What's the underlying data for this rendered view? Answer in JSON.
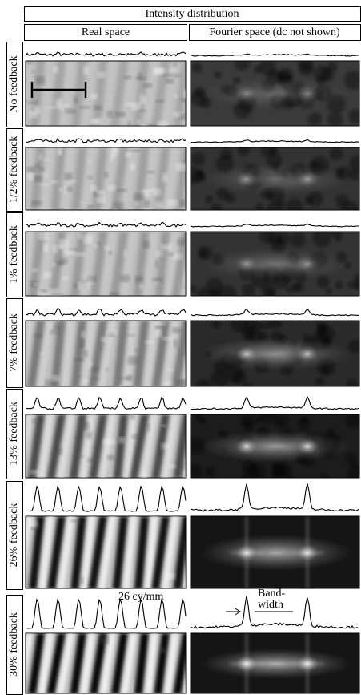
{
  "header": {
    "title": "Intensity distribution",
    "real_space": "Real space",
    "fourier_space": "Fourier space (dc not shown)"
  },
  "rows": [
    {
      "label": "No feedback"
    },
    {
      "label": "1/2% feedback"
    },
    {
      "label": "1% feedback"
    },
    {
      "label": "7% feedback"
    },
    {
      "label": "13% feedback"
    },
    {
      "label": "26% feedback"
    },
    {
      "label": "30% feedback"
    }
  ],
  "annotations": {
    "frequency": "26 cy/mm",
    "bandwidth": [
      "Band-",
      "width"
    ]
  }
}
